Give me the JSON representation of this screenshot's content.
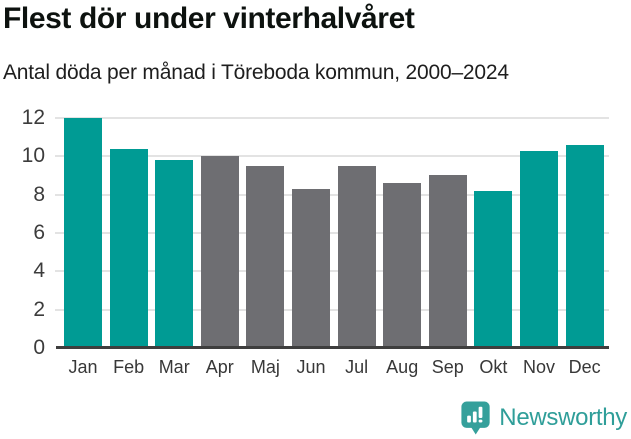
{
  "header": {
    "title": "Flest dör under vinterhalvåret",
    "subtitle": "Antal döda per månad i Töreboda kommun, 2000–2024"
  },
  "chart_data": {
    "type": "bar",
    "title": "Flest dör under vinterhalvåret",
    "subtitle": "Antal döda per månad i Töreboda kommun, 2000–2024",
    "categories": [
      "Jan",
      "Feb",
      "Mar",
      "Apr",
      "Maj",
      "Jun",
      "Jul",
      "Aug",
      "Sep",
      "Okt",
      "Nov",
      "Dec"
    ],
    "values": [
      12.0,
      10.4,
      9.8,
      10.0,
      9.5,
      8.3,
      9.5,
      8.6,
      9.0,
      8.2,
      10.3,
      10.6
    ],
    "bar_color_keys": [
      "teal",
      "teal",
      "teal",
      "gray",
      "gray",
      "gray",
      "gray",
      "gray",
      "gray",
      "teal",
      "teal",
      "teal"
    ],
    "colors": {
      "teal": "#009b94",
      "gray": "#6e6e72"
    },
    "xlabel": "",
    "ylabel": "",
    "yticks": [
      0,
      2,
      4,
      6,
      8,
      10,
      12
    ],
    "ylim": [
      0,
      12.4
    ],
    "grid": "horizontal-light",
    "legend": "none"
  },
  "footer": {
    "brand": "Newsworthy",
    "logo_icon": "bar-chart-speech-bubble-icon",
    "brand_color": "#2f9e99"
  }
}
